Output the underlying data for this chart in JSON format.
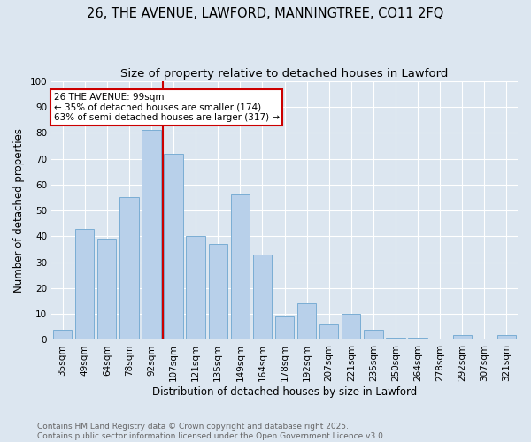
{
  "title1": "26, THE AVENUE, LAWFORD, MANNINGTREE, CO11 2FQ",
  "title2": "Size of property relative to detached houses in Lawford",
  "xlabel": "Distribution of detached houses by size in Lawford",
  "ylabel": "Number of detached properties",
  "categories": [
    "35sqm",
    "49sqm",
    "64sqm",
    "78sqm",
    "92sqm",
    "107sqm",
    "121sqm",
    "135sqm",
    "149sqm",
    "164sqm",
    "178sqm",
    "192sqm",
    "207sqm",
    "221sqm",
    "235sqm",
    "250sqm",
    "264sqm",
    "278sqm",
    "292sqm",
    "307sqm",
    "321sqm"
  ],
  "values": [
    4,
    43,
    39,
    55,
    81,
    72,
    40,
    37,
    56,
    33,
    9,
    14,
    6,
    10,
    4,
    1,
    1,
    0,
    2,
    0,
    2
  ],
  "bar_color": "#b8d0ea",
  "bar_edge_color": "#7aadd4",
  "bar_linewidth": 0.7,
  "vline_index": 4,
  "vline_color": "#cc0000",
  "annotation_text": "26 THE AVENUE: 99sqm\n← 35% of detached houses are smaller (174)\n63% of semi-detached houses are larger (317) →",
  "annotation_box_color": "#ffffff",
  "annotation_box_edge_color": "#cc0000",
  "background_color": "#dce6f0",
  "plot_background_color": "#dce6f0",
  "grid_color": "#ffffff",
  "footer_text": "Contains HM Land Registry data © Crown copyright and database right 2025.\nContains public sector information licensed under the Open Government Licence v3.0.",
  "ylim": [
    0,
    100
  ],
  "yticks": [
    0,
    10,
    20,
    30,
    40,
    50,
    60,
    70,
    80,
    90,
    100
  ],
  "title1_fontsize": 10.5,
  "title2_fontsize": 9.5,
  "axis_label_fontsize": 8.5,
  "tick_fontsize": 7.5,
  "footer_fontsize": 6.5,
  "annotation_fontsize": 7.5
}
